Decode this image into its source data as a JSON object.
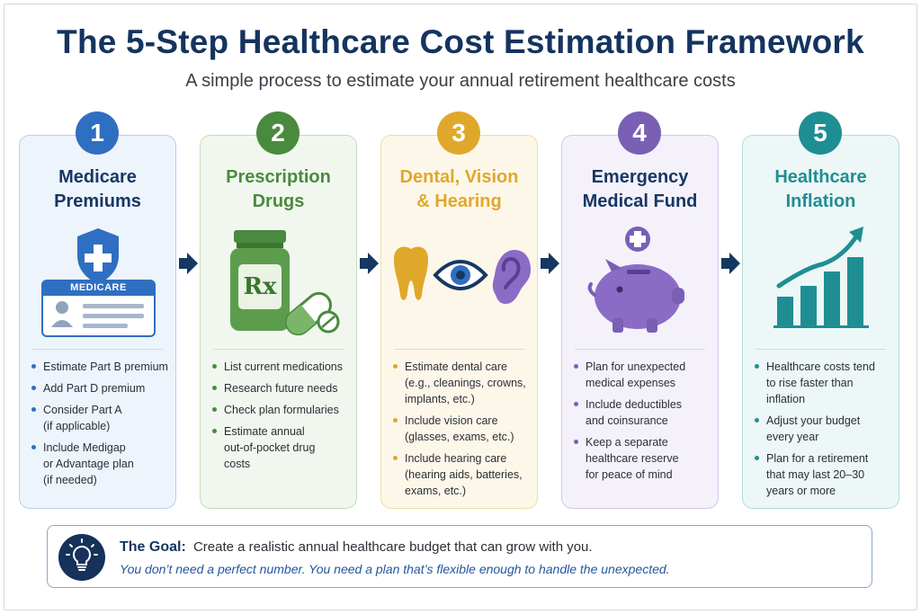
{
  "title": "The 5-Step Healthcare Cost Estimation Framework",
  "subtitle": "A simple process to estimate your annual retirement healthcare costs",
  "steps": [
    {
      "number": "1",
      "title_lines": [
        "Medicare",
        "Premiums"
      ],
      "icon": "medicare-card-icon",
      "card_label": "MEDICARE",
      "color": "#2f6fc1",
      "bullets": [
        [
          "Estimate Part B premium"
        ],
        [
          "Add Part D premium"
        ],
        [
          "Consider Part A",
          "(if applicable)"
        ],
        [
          "Include Medigap",
          "or Advantage plan",
          "(if needed)"
        ]
      ]
    },
    {
      "number": "2",
      "title_lines": [
        "Prescription",
        "Drugs"
      ],
      "icon": "pill-bottle-icon",
      "bottle_label": "Rx",
      "color": "#4a8a3e",
      "bullets": [
        [
          "List current medications"
        ],
        [
          "Research future needs"
        ],
        [
          "Check plan formularies"
        ],
        [
          "Estimate annual",
          "out-of-pocket drug",
          "costs"
        ]
      ]
    },
    {
      "number": "3",
      "title_lines": [
        "Dental, Vision",
        "& Hearing"
      ],
      "icon": "tooth-eye-ear-icon",
      "color": "#e0a82a",
      "bullets": [
        [
          "Estimate dental care",
          "(e.g., cleanings, crowns,",
          "implants, etc.)"
        ],
        [
          "Include vision care",
          "(glasses, exams, etc.)"
        ],
        [
          "Include hearing care",
          "(hearing aids, batteries,",
          "exams, etc.)"
        ]
      ]
    },
    {
      "number": "4",
      "title_lines": [
        "Emergency",
        "Medical Fund"
      ],
      "icon": "piggy-bank-icon",
      "color": "#7a5fb5",
      "bullets": [
        [
          "Plan for unexpected",
          "medical expenses"
        ],
        [
          "Include deductibles",
          "and coinsurance"
        ],
        [
          "Keep a separate",
          "healthcare reserve",
          "for peace of mind"
        ]
      ]
    },
    {
      "number": "5",
      "title_lines": [
        "Healthcare",
        "Inflation"
      ],
      "icon": "rising-bar-chart-icon",
      "color": "#1f8e93",
      "bullets": [
        [
          "Healthcare costs tend",
          "to rise faster than",
          "inflation"
        ],
        [
          "Adjust your budget",
          "every year"
        ],
        [
          "Plan for a retirement",
          "that may last 20–30",
          "years or more"
        ]
      ]
    }
  ],
  "goal": {
    "label": "The Goal:",
    "text": "Create a realistic annual healthcare budget that can grow with you.",
    "note": "You don’t need a perfect number. You need a plan that’s flexible enough to handle the unexpected.",
    "icon": "lightbulb-icon"
  }
}
